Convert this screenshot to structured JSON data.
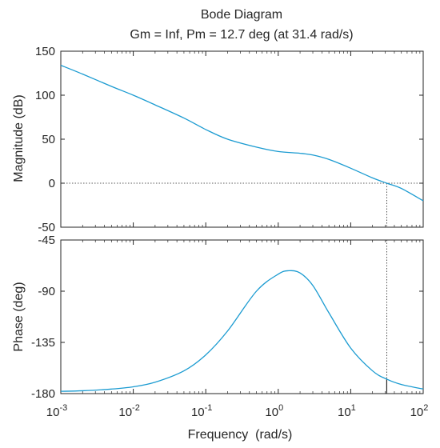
{
  "chart_data": [
    {
      "type": "line",
      "panel": "magnitude",
      "title": "Bode Diagram",
      "subtitle": "Gm = Inf,  Pm = 12.7 deg (at 31.4 rad/s)",
      "ylabel": "Magnitude (dB)",
      "xlabel": "",
      "xscale": "log",
      "xlim": [
        0.001,
        100
      ],
      "ylim": [
        -50,
        150
      ],
      "yticks": [
        -50,
        0,
        50,
        100,
        150
      ],
      "reference_line": {
        "y": 0,
        "style": "dotted"
      },
      "crossover_marker": {
        "x": 31.4,
        "style": "dotted"
      },
      "color": "#1b9bd1",
      "x": [
        0.001,
        0.002,
        0.005,
        0.01,
        0.02,
        0.05,
        0.1,
        0.2,
        0.5,
        1,
        2,
        3,
        5,
        10,
        20,
        31.4,
        50,
        100
      ],
      "y": [
        134,
        124,
        110,
        100,
        89,
        74,
        61,
        50,
        41,
        36,
        34,
        32,
        27,
        17,
        6,
        0,
        -6,
        -20
      ]
    },
    {
      "type": "line",
      "panel": "phase",
      "title": "",
      "ylabel": "Phase (deg)",
      "xlabel": "Frequency  (rad/s)",
      "xscale": "log",
      "xlim": [
        0.001,
        100
      ],
      "ylim": [
        -180,
        -45
      ],
      "yticks": [
        -180,
        -135,
        -90,
        -45
      ],
      "xticks": [
        "10",
        "10",
        "10",
        "10",
        "10",
        "10"
      ],
      "xtick_exponents": [
        "-3",
        "-2",
        "-1",
        "0",
        "1",
        "2"
      ],
      "crossover_marker": {
        "x": 31.4,
        "phase": -167.3,
        "style": "dotted"
      },
      "color": "#1b9bd1",
      "x": [
        0.001,
        0.002,
        0.005,
        0.01,
        0.02,
        0.05,
        0.1,
        0.2,
        0.5,
        1,
        1.4,
        2,
        3,
        5,
        10,
        20,
        31.4,
        50,
        100
      ],
      "y": [
        -178,
        -177.5,
        -176,
        -174,
        -170,
        -160,
        -146,
        -125,
        -90,
        -75,
        -72,
        -74,
        -85,
        -109,
        -140,
        -160,
        -167.3,
        -172,
        -176
      ]
    }
  ]
}
